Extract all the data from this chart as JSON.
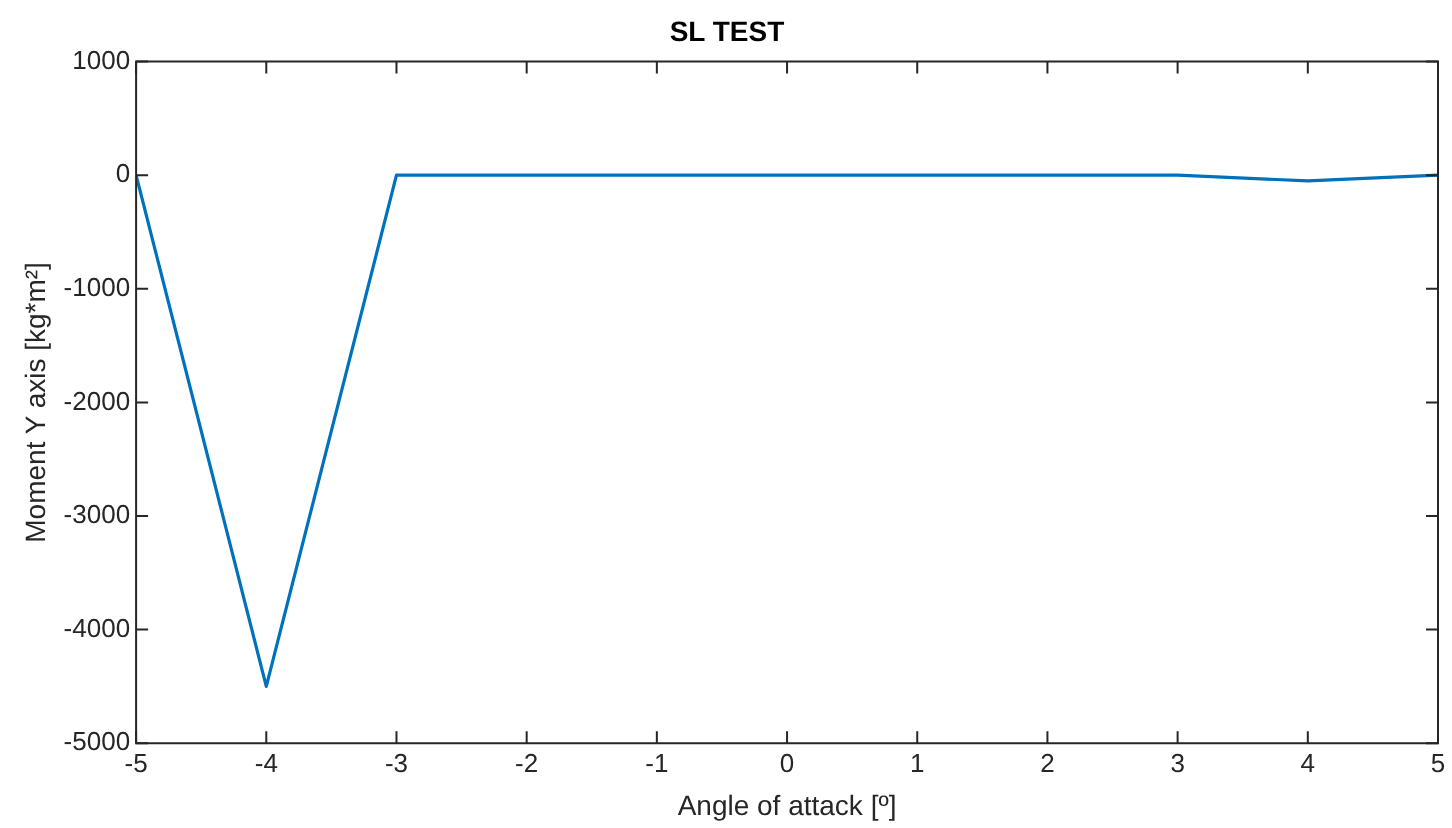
{
  "chart_data": {
    "type": "line",
    "title": "SL TEST",
    "xlabel": "Angle of attack [º]",
    "ylabel": "Moment Y axis [kg*m²]",
    "x": [
      -5,
      -4,
      -3,
      -2,
      -1,
      0,
      1,
      2,
      3,
      4,
      5
    ],
    "series": [
      {
        "color": "#0072bd",
        "values": [
          0,
          -4500,
          0,
          0,
          0,
          0,
          0,
          0,
          0,
          -50,
          0
        ]
      }
    ],
    "xlim": [
      -5,
      5
    ],
    "xticks": [
      -5,
      -4,
      -3,
      -2,
      -1,
      0,
      1,
      2,
      3,
      4,
      5
    ],
    "ylim": [
      -5000,
      1000
    ],
    "yticks": [
      -5000,
      -4000,
      -3000,
      -2000,
      -1000,
      0,
      1000
    ],
    "grid": false,
    "legend": false,
    "marker": "none",
    "line_style": "solid"
  }
}
